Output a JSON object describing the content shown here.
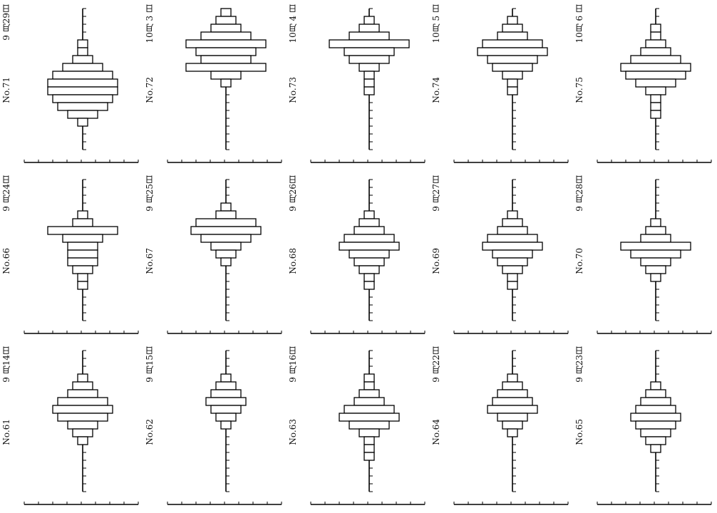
{
  "chart_data": [
    {
      "type": "bar",
      "subtype": "pyramid",
      "number": "No.71",
      "date": "9 月29日",
      "values": [
        0,
        0,
        0,
        0,
        0,
        0,
        0,
        0,
        0,
        0,
        0,
        0,
        0,
        0,
        0,
        0,
        0,
        0,
        0,
        0,
        0,
        0,
        0,
        0,
        0,
        0,
        0,
        0,
        0,
        0
      ]
    },
    {
      "type": "bar",
      "subtype": "pyramid",
      "number": "No.72",
      "date": "10月 3 日",
      "values": []
    },
    {
      "type": "bar",
      "subtype": "pyramid",
      "number": "No.73",
      "date": "10月 4 日",
      "values": []
    },
    {
      "type": "bar",
      "subtype": "pyramid",
      "number": "No.74",
      "date": "10月 5 日",
      "values": []
    },
    {
      "type": "bar",
      "subtype": "pyramid",
      "number": "No.75",
      "date": "10月 6 日",
      "values": []
    },
    {
      "type": "bar",
      "subtype": "pyramid",
      "number": "No.66",
      "date": "9 月24日",
      "values": []
    },
    {
      "type": "bar",
      "subtype": "pyramid",
      "number": "No.67",
      "date": "9 月25日",
      "values": []
    },
    {
      "type": "bar",
      "subtype": "pyramid",
      "number": "No.68",
      "date": "9 月26日",
      "values": []
    },
    {
      "type": "bar",
      "subtype": "pyramid",
      "number": "No.69",
      "date": "9 月27日",
      "values": []
    },
    {
      "type": "bar",
      "subtype": "pyramid",
      "number": "No.70",
      "date": "9 月28日",
      "values": []
    },
    {
      "type": "bar",
      "subtype": "pyramid",
      "number": "No.61",
      "date": "9 月14日",
      "values": []
    },
    {
      "type": "bar",
      "subtype": "pyramid",
      "number": "No.62",
      "date": "9 月15日",
      "values": []
    },
    {
      "type": "bar",
      "subtype": "pyramid",
      "number": "No.63",
      "date": "9 月16日",
      "values": []
    },
    {
      "type": "bar",
      "subtype": "pyramid",
      "number": "No.64",
      "date": "9 月22日",
      "values": []
    },
    {
      "type": "bar",
      "subtype": "pyramid",
      "number": "No.65",
      "date": "9 月23日",
      "values": []
    }
  ],
  "bar_levels": [
    [
      [
        4,
        1
      ],
      [
        5,
        1
      ],
      [
        6,
        2
      ],
      [
        7,
        4
      ],
      [
        8,
        6
      ],
      [
        9,
        7
      ],
      [
        10,
        7
      ],
      [
        11,
        6
      ],
      [
        12,
        5
      ],
      [
        13,
        3
      ],
      [
        14,
        1
      ]
    ],
    [
      [
        0,
        1
      ],
      [
        1,
        2
      ],
      [
        2,
        3
      ],
      [
        3,
        5
      ],
      [
        4,
        8
      ],
      [
        5,
        6
      ],
      [
        6,
        5
      ],
      [
        7,
        8
      ],
      [
        8,
        3
      ],
      [
        9,
        1
      ]
    ],
    [
      [
        1,
        1
      ],
      [
        2,
        2
      ],
      [
        3,
        4
      ],
      [
        4,
        8
      ],
      [
        5,
        5
      ],
      [
        6,
        4
      ],
      [
        7,
        2
      ],
      [
        8,
        1
      ],
      [
        9,
        1
      ],
      [
        10,
        1
      ]
    ],
    [
      [
        1,
        1
      ],
      [
        2,
        2
      ],
      [
        3,
        3
      ],
      [
        4,
        6
      ],
      [
        5,
        7
      ],
      [
        6,
        5
      ],
      [
        7,
        4
      ],
      [
        8,
        2
      ],
      [
        9,
        1
      ],
      [
        10,
        1
      ]
    ],
    [
      [
        2,
        1
      ],
      [
        3,
        1
      ],
      [
        4,
        2
      ],
      [
        5,
        3
      ],
      [
        6,
        5
      ],
      [
        7,
        7
      ],
      [
        8,
        6
      ],
      [
        9,
        4
      ],
      [
        10,
        2
      ],
      [
        11,
        1
      ],
      [
        12,
        1
      ],
      [
        13,
        1
      ]
    ],
    [
      [
        4,
        1
      ],
      [
        5,
        2
      ],
      [
        6,
        7
      ],
      [
        7,
        4
      ],
      [
        8,
        3
      ],
      [
        9,
        3
      ],
      [
        10,
        3
      ],
      [
        11,
        2
      ],
      [
        12,
        1
      ],
      [
        13,
        1
      ]
    ],
    [
      [
        3,
        1
      ],
      [
        4,
        2
      ],
      [
        5,
        6
      ],
      [
        6,
        7
      ],
      [
        7,
        5
      ],
      [
        8,
        3
      ],
      [
        9,
        2
      ],
      [
        10,
        1
      ]
    ],
    [
      [
        4,
        1
      ],
      [
        5,
        2
      ],
      [
        6,
        3
      ],
      [
        7,
        5
      ],
      [
        8,
        6
      ],
      [
        9,
        4
      ],
      [
        10,
        3
      ],
      [
        11,
        2
      ],
      [
        12,
        1
      ],
      [
        13,
        1
      ]
    ],
    [
      [
        4,
        1
      ],
      [
        5,
        2
      ],
      [
        6,
        3
      ],
      [
        7,
        5
      ],
      [
        8,
        6
      ],
      [
        9,
        4
      ],
      [
        10,
        3
      ],
      [
        11,
        2
      ],
      [
        12,
        1
      ],
      [
        13,
        1
      ]
    ],
    [
      [
        5,
        1
      ],
      [
        6,
        2
      ],
      [
        7,
        3
      ],
      [
        8,
        7
      ],
      [
        9,
        5
      ],
      [
        10,
        3
      ],
      [
        11,
        2
      ],
      [
        12,
        1
      ]
    ],
    [
      [
        3,
        1
      ],
      [
        4,
        2
      ],
      [
        5,
        3
      ],
      [
        6,
        5
      ],
      [
        7,
        6
      ],
      [
        8,
        5
      ],
      [
        9,
        3
      ],
      [
        10,
        2
      ],
      [
        11,
        1
      ]
    ],
    [
      [
        3,
        1
      ],
      [
        4,
        2
      ],
      [
        5,
        3
      ],
      [
        6,
        4
      ],
      [
        7,
        3
      ],
      [
        8,
        2
      ],
      [
        9,
        1
      ]
    ],
    [
      [
        3,
        1
      ],
      [
        4,
        1
      ],
      [
        5,
        2
      ],
      [
        6,
        3
      ],
      [
        7,
        5
      ],
      [
        8,
        6
      ],
      [
        9,
        4
      ],
      [
        10,
        2
      ],
      [
        11,
        1
      ],
      [
        12,
        1
      ],
      [
        13,
        1
      ]
    ],
    [
      [
        3,
        1
      ],
      [
        4,
        2
      ],
      [
        5,
        3
      ],
      [
        6,
        4
      ],
      [
        7,
        5
      ],
      [
        8,
        3
      ],
      [
        9,
        2
      ],
      [
        10,
        1
      ]
    ],
    [
      [
        4,
        1
      ],
      [
        5,
        2
      ],
      [
        6,
        3
      ],
      [
        7,
        4
      ],
      [
        8,
        5
      ],
      [
        9,
        4
      ],
      [
        10,
        3
      ],
      [
        11,
        2
      ],
      [
        12,
        1
      ]
    ]
  ]
}
